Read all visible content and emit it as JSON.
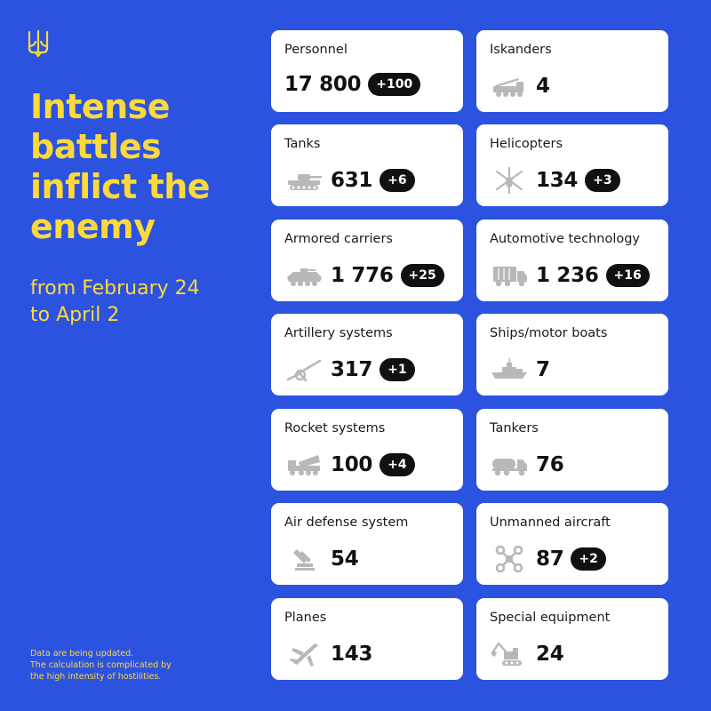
{
  "headline": [
    "Intense",
    "battles",
    "inflict the",
    "enemy"
  ],
  "dates": [
    "from February 24",
    "to April 2"
  ],
  "note": [
    "Data are being updated.",
    "The calculation is complicated by",
    "the high intensity of hostilities."
  ],
  "colors": {
    "background": "#2b53e0",
    "accent": "#ffd93a",
    "card": "#ffffff",
    "badge": "#111111",
    "icon": "#b8b8b8"
  },
  "cards": [
    {
      "title": "Personnel",
      "value": "17 800",
      "delta": "+100",
      "icon": ""
    },
    {
      "title": "Iskanders",
      "value": "4",
      "delta": "",
      "icon": "iskander-launcher-icon"
    },
    {
      "title": "Tanks",
      "value": "631",
      "delta": "+6",
      "icon": "tank-icon"
    },
    {
      "title": "Helicopters",
      "value": "134",
      "delta": "+3",
      "icon": "helicopter-icon"
    },
    {
      "title": "Armored carriers",
      "value": "1 776",
      "delta": "+25",
      "icon": "armored-carrier-icon"
    },
    {
      "title": "Automotive technology",
      "value": "1 236",
      "delta": "+16",
      "icon": "truck-icon"
    },
    {
      "title": "Artillery systems",
      "value": "317",
      "delta": "+1",
      "icon": "artillery-icon"
    },
    {
      "title": "Ships/motor boats",
      "value": "7",
      "delta": "",
      "icon": "ship-icon"
    },
    {
      "title": "Rocket systems",
      "value": "100",
      "delta": "+4",
      "icon": "rocket-launcher-icon"
    },
    {
      "title": "Tankers",
      "value": "76",
      "delta": "",
      "icon": "tanker-truck-icon"
    },
    {
      "title": "Air defense system",
      "value": "54",
      "delta": "",
      "icon": "air-defense-icon"
    },
    {
      "title": "Unmanned aircraft",
      "value": "87",
      "delta": "+2",
      "icon": "drone-icon"
    },
    {
      "title": "Planes",
      "value": "143",
      "delta": "",
      "icon": "plane-icon"
    },
    {
      "title": "Special equipment",
      "value": "24",
      "delta": "",
      "icon": "excavator-icon"
    }
  ]
}
